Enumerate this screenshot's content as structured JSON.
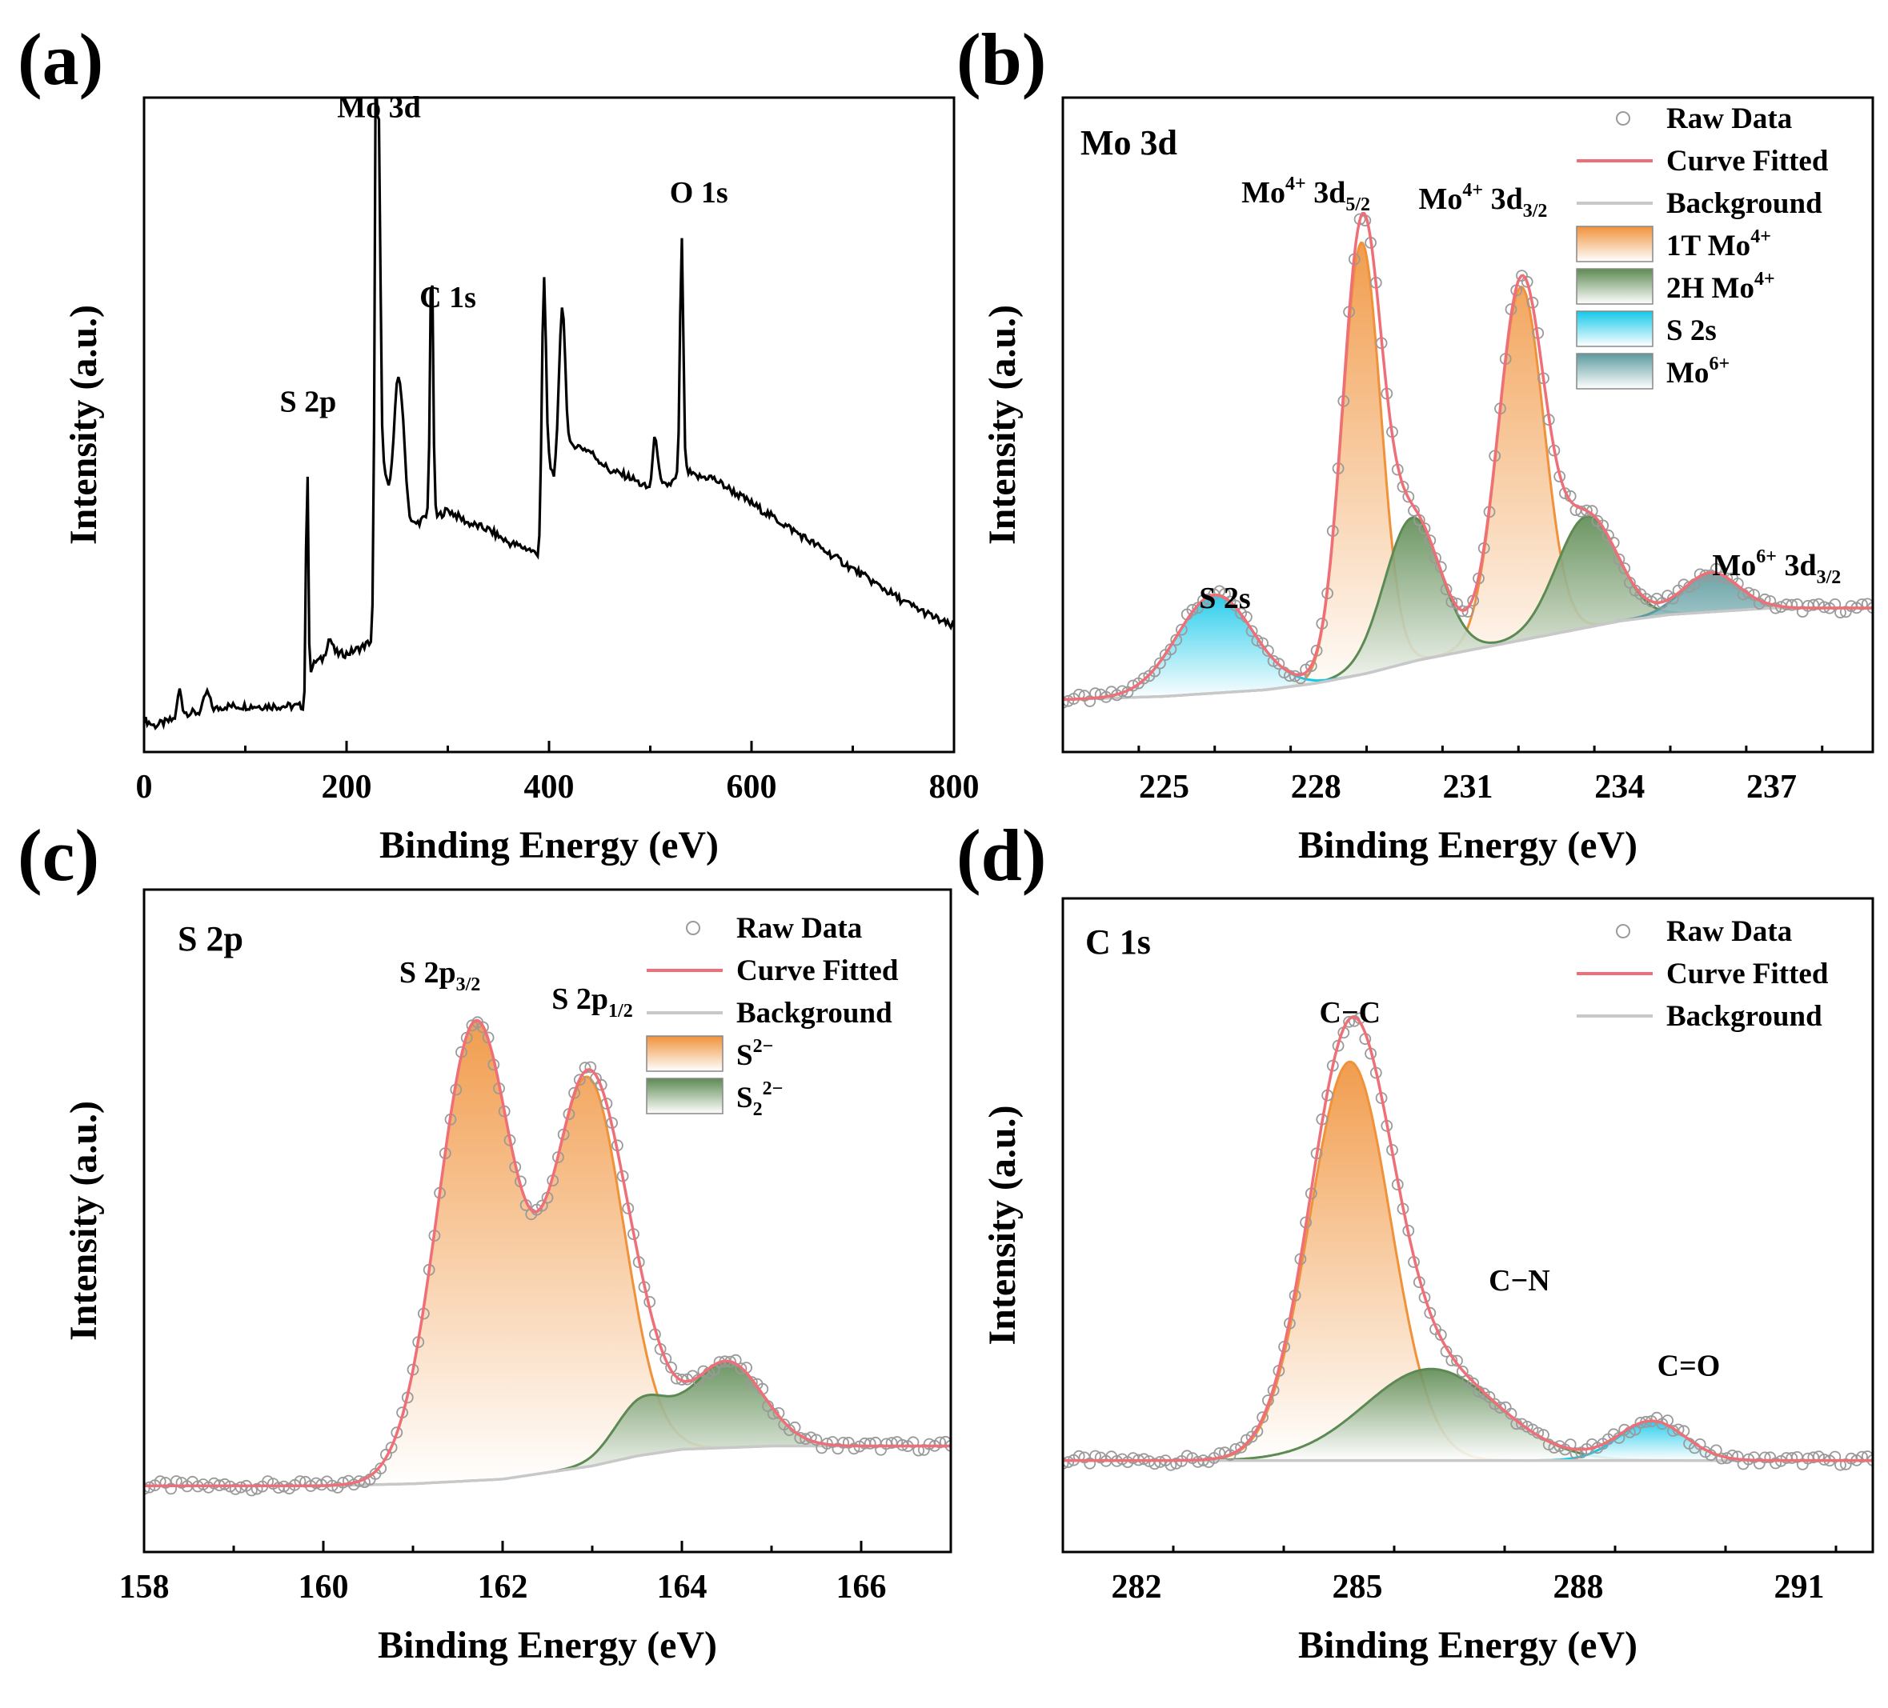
{
  "chart_data": [
    {
      "id": "a",
      "panel_letter": "(a)",
      "type": "line",
      "title": "",
      "xlabel": "Binding Energy (eV)",
      "ylabel": "Intensity (a.u.)",
      "xlim": [
        0,
        800
      ],
      "ylim": [
        0,
        100
      ],
      "xticks": [
        0,
        200,
        400,
        600,
        800
      ],
      "xtick_labels": [
        "0",
        "200",
        "400",
        "600",
        "800"
      ],
      "baseline": [
        [
          0,
          5
        ],
        [
          10,
          4
        ],
        [
          30,
          5
        ],
        [
          40,
          6
        ],
        [
          60,
          6
        ],
        [
          80,
          7
        ],
        [
          100,
          7
        ],
        [
          130,
          7
        ],
        [
          155,
          7
        ],
        [
          160,
          7
        ],
        [
          163,
          12
        ],
        [
          170,
          14
        ],
        [
          180,
          14
        ],
        [
          190,
          15
        ],
        [
          200,
          15
        ],
        [
          215,
          16
        ],
        [
          225,
          17
        ],
        [
          229,
          48
        ],
        [
          232,
          50
        ],
        [
          236,
          45
        ],
        [
          240,
          40
        ],
        [
          245,
          37
        ],
        [
          250,
          38
        ],
        [
          255,
          36
        ],
        [
          262,
          34
        ],
        [
          270,
          35
        ],
        [
          280,
          36
        ],
        [
          290,
          36
        ],
        [
          300,
          37
        ],
        [
          320,
          35
        ],
        [
          340,
          34
        ],
        [
          360,
          32
        ],
        [
          380,
          31
        ],
        [
          390,
          30
        ],
        [
          393,
          37
        ],
        [
          400,
          44
        ],
        [
          405,
          42
        ],
        [
          415,
          45
        ],
        [
          425,
          47
        ],
        [
          440,
          46
        ],
        [
          460,
          43
        ],
        [
          480,
          42
        ],
        [
          500,
          40
        ],
        [
          520,
          41
        ],
        [
          535,
          43
        ],
        [
          545,
          42
        ],
        [
          560,
          42
        ],
        [
          580,
          40
        ],
        [
          600,
          38
        ],
        [
          620,
          36
        ],
        [
          650,
          33
        ],
        [
          700,
          28
        ],
        [
          750,
          23
        ],
        [
          800,
          19
        ]
      ],
      "peaks": [
        [
          35,
          4,
          2.0
        ],
        [
          62,
          3,
          3
        ],
        [
          161,
          37,
          1.1
        ],
        [
          183,
          3,
          3
        ],
        [
          229,
          57,
          1.1
        ],
        [
          232,
          45,
          1.4
        ],
        [
          252,
          20,
          5
        ],
        [
          284,
          40,
          1.5
        ],
        [
          395,
          33,
          2.0
        ],
        [
          413,
          24,
          3.0
        ],
        [
          505,
          8,
          2.5
        ],
        [
          531,
          36,
          1.6
        ]
      ],
      "annotations": [
        {
          "text": "Mo 3d",
          "x": 232,
          "y": 97
        },
        {
          "text": "C 1s",
          "x": 300,
          "y": 68
        },
        {
          "text": "S 2p",
          "x": 162,
          "y": 52
        },
        {
          "text": "O 1s",
          "x": 548,
          "y": 84
        }
      ]
    },
    {
      "id": "b",
      "panel_letter": "(b)",
      "type": "line",
      "title": "Mo 3d",
      "xlabel": "Binding Energy (eV)",
      "ylabel": "Intensity (a.u.)",
      "xlim": [
        223,
        239
      ],
      "ylim": [
        0,
        100
      ],
      "xticks": [
        225,
        228,
        231,
        234,
        237
      ],
      "xtick_labels": [
        "225",
        "228",
        "231",
        "234",
        "237"
      ],
      "background": [
        [
          223,
          8
        ],
        [
          225,
          8.5
        ],
        [
          227,
          9.5
        ],
        [
          228,
          10.5
        ],
        [
          229,
          12
        ],
        [
          230,
          14
        ],
        [
          231,
          15.5
        ],
        [
          232,
          17
        ],
        [
          233,
          18.5
        ],
        [
          234,
          20
        ],
        [
          235,
          21
        ],
        [
          236,
          21.5
        ],
        [
          237,
          22
        ],
        [
          239,
          22
        ]
      ],
      "components": [
        {
          "name": "1T Mo4+",
          "color": "#f0923a",
          "peaks": [
            [
              228.9,
              66,
              0.38
            ],
            [
              232.05,
              54,
              0.45
            ]
          ]
        },
        {
          "name": "2H Mo4+",
          "color": "#5d8a52",
          "peaks": [
            [
              229.9,
              22,
              0.55
            ],
            [
              233.35,
              17,
              0.6
            ]
          ]
        },
        {
          "name": "S 2s",
          "color": "#14c8ea",
          "peaks": [
            [
              226.0,
              15,
              0.75
            ]
          ]
        },
        {
          "name": "Mo6+",
          "color": "#5b9a9e",
          "peaks": [
            [
              235.8,
              6,
              0.55
            ]
          ]
        }
      ],
      "annotations": [
        {
          "text": "Mo",
          "sup": "4+",
          "rest": " 3d",
          "sub": "5/2",
          "x": 227.8,
          "y": 84
        },
        {
          "text": "Mo",
          "sup": "4+",
          "rest": " 3d",
          "sub": "3/2",
          "x": 231.3,
          "y": 83
        },
        {
          "text": "S 2s",
          "x": 226.2,
          "y": 22
        },
        {
          "text": "Mo",
          "sup": "6+",
          "rest": " 3d",
          "sub": "3/2",
          "x": 237.1,
          "y": 27
        }
      ],
      "legend": [
        {
          "label": "Raw Data",
          "kind": "marker"
        },
        {
          "label": "Curve Fitted",
          "kind": "line-red"
        },
        {
          "label": "Background",
          "kind": "line-gray"
        },
        {
          "label": "1T Mo",
          "sup": "4+",
          "kind": "patch",
          "color": "#f0923a"
        },
        {
          "label": "2H Mo",
          "sup": "4+",
          "kind": "patch",
          "color": "#5d8a52"
        },
        {
          "label": "S 2s",
          "kind": "patch",
          "color": "#14c8ea"
        },
        {
          "label": "Mo",
          "sup": "6+",
          "kind": "patch",
          "color": "#5b9a9e"
        }
      ]
    },
    {
      "id": "c",
      "panel_letter": "(c)",
      "type": "line",
      "title": "S 2p",
      "xlabel": "Binding Energy (eV)",
      "ylabel": "Intensity (a.u.)",
      "xlim": [
        158,
        167
      ],
      "ylim": [
        0,
        100
      ],
      "xticks": [
        158,
        160,
        162,
        164,
        166
      ],
      "xtick_labels": [
        "158",
        "160",
        "162",
        "164",
        "166"
      ],
      "background": [
        [
          158,
          10
        ],
        [
          160,
          10
        ],
        [
          161,
          10.3
        ],
        [
          162,
          11
        ],
        [
          163,
          13
        ],
        [
          163.5,
          14.5
        ],
        [
          164,
          15.5
        ],
        [
          165,
          16
        ],
        [
          167,
          16
        ]
      ],
      "components": [
        {
          "name": "S2-",
          "color": "#f0923a",
          "peaks": [
            [
              161.7,
              69,
              0.42
            ],
            [
              162.95,
              58,
              0.4
            ]
          ]
        },
        {
          "name": "S2 2-",
          "color": "#5d8a52",
          "peaks": [
            [
              163.55,
              8,
              0.3
            ],
            [
              164.5,
              13,
              0.4
            ]
          ]
        }
      ],
      "annotations": [
        {
          "text": "S 2p",
          "sub": "3/2",
          "x": 161.3,
          "y": 86
        },
        {
          "text": "S 2p",
          "sub": "1/2",
          "x": 163.0,
          "y": 82
        }
      ],
      "legend": [
        {
          "label": "Raw Data",
          "kind": "marker"
        },
        {
          "label": "Curve Fitted",
          "kind": "line-red"
        },
        {
          "label": "Background",
          "kind": "line-gray"
        },
        {
          "label": "S",
          "sup": "2−",
          "kind": "patch",
          "color": "#f0923a"
        },
        {
          "label": "S",
          "sub": "2",
          "sup": "2−",
          "kind": "patch",
          "color": "#5d8a52"
        }
      ]
    },
    {
      "id": "d",
      "panel_letter": "(d)",
      "type": "line",
      "title": "C 1s",
      "xlabel": "Binding Energy (eV)",
      "ylabel": "Intensity (a.u.)",
      "xlim": [
        281,
        292
      ],
      "ylim": [
        0,
        100
      ],
      "xticks": [
        282,
        285,
        288,
        291
      ],
      "xtick_labels": [
        "282",
        "285",
        "288",
        "291"
      ],
      "background": [
        [
          281,
          14
        ],
        [
          292,
          14
        ]
      ],
      "components": [
        {
          "name": "C−C",
          "color": "#f0923a",
          "peaks": [
            [
              284.9,
              61,
              0.55
            ]
          ]
        },
        {
          "name": "C−N",
          "color": "#5d8a52",
          "peaks": [
            [
              286.0,
              14,
              0.9
            ]
          ]
        },
        {
          "name": "C=O",
          "color": "#14c8ea",
          "peaks": [
            [
              289.0,
              6,
              0.45
            ]
          ]
        }
      ],
      "annotations": [
        {
          "text": "C−C",
          "x": 284.9,
          "y": 81
        },
        {
          "text": "C−N",
          "x": 287.2,
          "y": 40
        },
        {
          "text": "C=O",
          "x": 289.5,
          "y": 27
        }
      ],
      "legend": [
        {
          "label": "Raw Data",
          "kind": "marker"
        },
        {
          "label": "Curve Fitted",
          "kind": "line-red"
        },
        {
          "label": "Background",
          "kind": "line-gray"
        }
      ]
    }
  ]
}
